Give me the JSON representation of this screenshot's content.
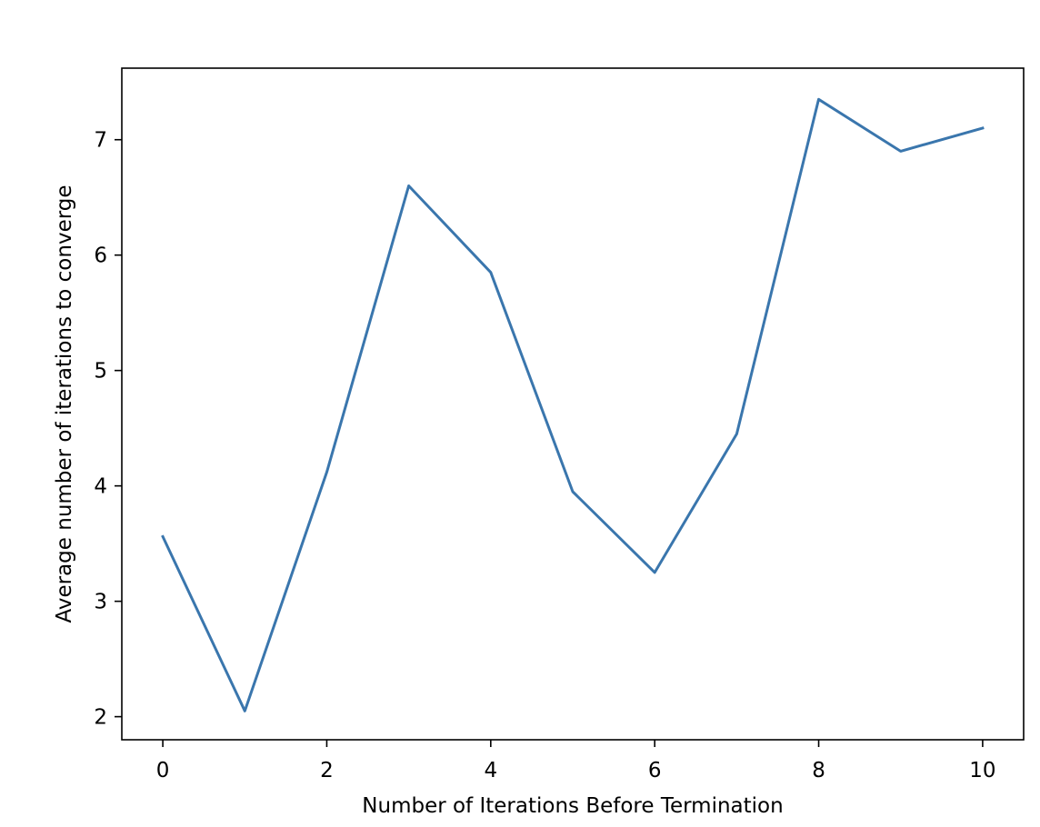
{
  "chart_data": {
    "type": "line",
    "title": "",
    "xlabel": "Number of Iterations Before Termination",
    "ylabel": "Average number of iterations to converge",
    "xlim": [
      -0.5,
      10.5
    ],
    "ylim": [
      1.8,
      7.62
    ],
    "xticks": [
      0,
      2,
      4,
      6,
      8,
      10
    ],
    "yticks": [
      2,
      3,
      4,
      5,
      6,
      7
    ],
    "grid": false,
    "legend": "none",
    "line_color": "#3a76ad",
    "series": [
      {
        "x": [
          0,
          1,
          2,
          3,
          4,
          5,
          6,
          7,
          8,
          9,
          10
        ],
        "values": [
          3.56,
          2.05,
          4.12,
          6.6,
          5.85,
          3.95,
          3.25,
          4.45,
          7.35,
          6.9,
          7.1
        ]
      }
    ]
  }
}
